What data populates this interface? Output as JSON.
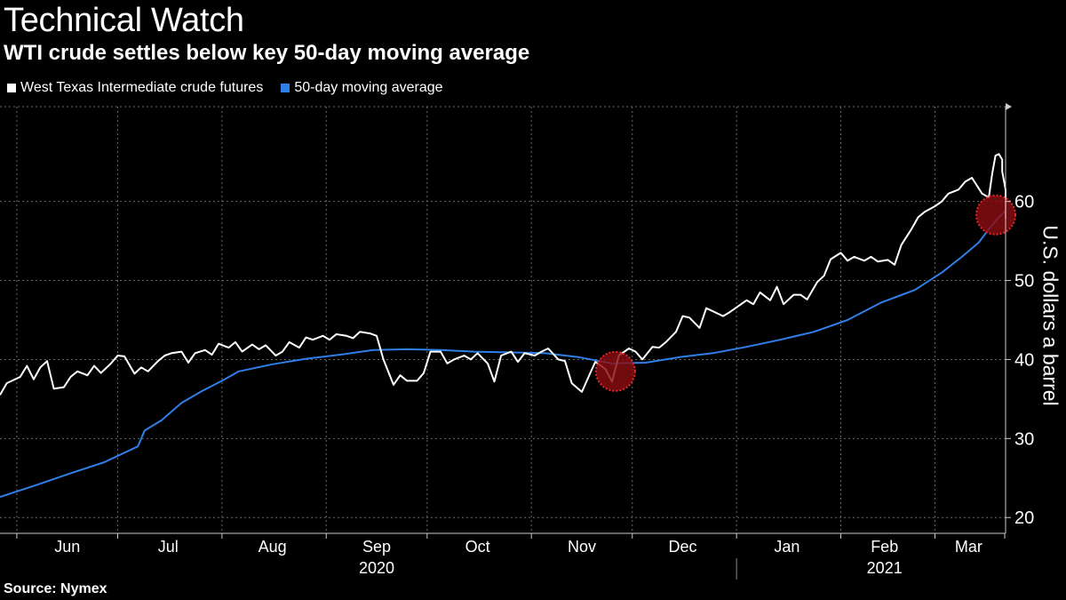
{
  "chart_data": {
    "type": "line",
    "title": "Technical Watch",
    "subtitle": "WTI crude settles below key 50-day moving average",
    "ylabel": "U.S. dollars a barrel",
    "ylim": [
      18,
      72
    ],
    "yticks": [
      20,
      30,
      40,
      50,
      60
    ],
    "xlim": [
      "2020-05-27",
      "2021-03-22"
    ],
    "x_month_ticks": [
      "2020-06-01",
      "2020-07-01",
      "2020-08-01",
      "2020-09-01",
      "2020-10-01",
      "2020-11-01",
      "2020-12-01",
      "2021-01-01",
      "2021-02-01",
      "2021-03-01",
      "2021-03-31"
    ],
    "x_month_labels": [
      {
        "label": "Jun",
        "date": "2020-06-16"
      },
      {
        "label": "Jul",
        "date": "2020-07-16"
      },
      {
        "label": "Aug",
        "date": "2020-08-16"
      },
      {
        "label": "Sep",
        "date": "2020-09-16"
      },
      {
        "label": "Oct",
        "date": "2020-10-16"
      },
      {
        "label": "Nov",
        "date": "2020-11-16"
      },
      {
        "label": "Dec",
        "date": "2020-12-16"
      },
      {
        "label": "Jan",
        "date": "2021-01-16"
      },
      {
        "label": "Feb",
        "date": "2021-02-14"
      },
      {
        "label": "Mar",
        "date": "2021-03-11"
      }
    ],
    "x_year_labels": [
      {
        "label": "2020",
        "date": "2020-09-16"
      },
      {
        "label": "2021",
        "date": "2021-02-14"
      }
    ],
    "grid": true,
    "legend_position": "top-left",
    "series": [
      {
        "name": "West Texas Intermediate crude futures",
        "color": "#ffffff",
        "points": [
          [
            "2020-05-27",
            35.5
          ],
          [
            "2020-05-29",
            37.0
          ],
          [
            "2020-06-02",
            37.8
          ],
          [
            "2020-06-04",
            39.2
          ],
          [
            "2020-06-06",
            37.5
          ],
          [
            "2020-06-08",
            39.0
          ],
          [
            "2020-06-10",
            39.8
          ],
          [
            "2020-06-12",
            36.3
          ],
          [
            "2020-06-15",
            36.5
          ],
          [
            "2020-06-17",
            37.8
          ],
          [
            "2020-06-19",
            38.5
          ],
          [
            "2020-06-22",
            38.0
          ],
          [
            "2020-06-24",
            39.2
          ],
          [
            "2020-06-26",
            38.3
          ],
          [
            "2020-06-29",
            39.5
          ],
          [
            "2020-07-01",
            40.5
          ],
          [
            "2020-07-03",
            40.4
          ],
          [
            "2020-07-06",
            38.2
          ],
          [
            "2020-07-08",
            39.0
          ],
          [
            "2020-07-10",
            38.5
          ],
          [
            "2020-07-13",
            39.8
          ],
          [
            "2020-07-15",
            40.5
          ],
          [
            "2020-07-17",
            40.8
          ],
          [
            "2020-07-20",
            41.0
          ],
          [
            "2020-07-22",
            39.6
          ],
          [
            "2020-07-24",
            40.8
          ],
          [
            "2020-07-27",
            41.2
          ],
          [
            "2020-07-29",
            40.6
          ],
          [
            "2020-07-31",
            42.0
          ],
          [
            "2020-08-03",
            41.5
          ],
          [
            "2020-08-05",
            42.2
          ],
          [
            "2020-08-07",
            41.0
          ],
          [
            "2020-08-10",
            41.9
          ],
          [
            "2020-08-12",
            41.3
          ],
          [
            "2020-08-14",
            41.8
          ],
          [
            "2020-08-17",
            40.5
          ],
          [
            "2020-08-19",
            41.0
          ],
          [
            "2020-08-21",
            42.2
          ],
          [
            "2020-08-24",
            41.5
          ],
          [
            "2020-08-26",
            42.8
          ],
          [
            "2020-08-28",
            42.5
          ],
          [
            "2020-08-31",
            43.0
          ],
          [
            "2020-09-02",
            42.5
          ],
          [
            "2020-09-04",
            43.2
          ],
          [
            "2020-09-07",
            43.0
          ],
          [
            "2020-09-09",
            42.7
          ],
          [
            "2020-09-11",
            43.5
          ],
          [
            "2020-09-14",
            43.3
          ],
          [
            "2020-09-16",
            43.0
          ],
          [
            "2020-09-18",
            40.0
          ],
          [
            "2020-09-21",
            36.8
          ],
          [
            "2020-09-23",
            38.0
          ],
          [
            "2020-09-25",
            37.3
          ],
          [
            "2020-09-28",
            37.3
          ],
          [
            "2020-09-30",
            38.3
          ],
          [
            "2020-10-02",
            41.0
          ],
          [
            "2020-10-05",
            41.0
          ],
          [
            "2020-10-07",
            39.5
          ],
          [
            "2020-10-09",
            40.0
          ],
          [
            "2020-10-12",
            40.5
          ],
          [
            "2020-10-14",
            40.0
          ],
          [
            "2020-10-16",
            40.8
          ],
          [
            "2020-10-19",
            39.5
          ],
          [
            "2020-10-21",
            37.2
          ],
          [
            "2020-10-23",
            40.5
          ],
          [
            "2020-10-26",
            41.0
          ],
          [
            "2020-10-28",
            39.7
          ],
          [
            "2020-10-30",
            40.8
          ],
          [
            "2020-11-02",
            40.5
          ],
          [
            "2020-11-04",
            41.0
          ],
          [
            "2020-11-06",
            41.4
          ],
          [
            "2020-11-09",
            40.0
          ],
          [
            "2020-11-11",
            39.8
          ],
          [
            "2020-11-13",
            37.0
          ],
          [
            "2020-11-16",
            35.9
          ],
          [
            "2020-11-18",
            37.8
          ],
          [
            "2020-11-20",
            39.7
          ],
          [
            "2020-11-23",
            38.8
          ],
          [
            "2020-11-25",
            37.2
          ],
          [
            "2020-11-27",
            40.5
          ],
          [
            "2020-11-30",
            41.4
          ],
          [
            "2020-12-02",
            41.0
          ],
          [
            "2020-12-04",
            40.0
          ],
          [
            "2020-12-07",
            41.6
          ],
          [
            "2020-12-09",
            41.5
          ],
          [
            "2020-12-11",
            42.2
          ],
          [
            "2020-12-14",
            43.5
          ],
          [
            "2020-12-16",
            45.5
          ],
          [
            "2020-12-18",
            45.3
          ],
          [
            "2020-12-21",
            44.0
          ],
          [
            "2020-12-23",
            46.5
          ],
          [
            "2020-12-28",
            45.5
          ],
          [
            "2020-12-30",
            46.0
          ],
          [
            "2021-01-04",
            47.5
          ],
          [
            "2021-01-06",
            47.0
          ],
          [
            "2021-01-08",
            48.5
          ],
          [
            "2021-01-11",
            47.5
          ],
          [
            "2021-01-13",
            49.2
          ],
          [
            "2021-01-15",
            47.0
          ],
          [
            "2021-01-18",
            48.2
          ],
          [
            "2021-01-20",
            48.2
          ],
          [
            "2021-01-22",
            47.6
          ],
          [
            "2021-01-25",
            49.8
          ],
          [
            "2021-01-27",
            50.6
          ],
          [
            "2021-01-29",
            52.7
          ],
          [
            "2021-02-01",
            53.5
          ],
          [
            "2021-02-03",
            52.5
          ],
          [
            "2021-02-05",
            53.0
          ],
          [
            "2021-02-08",
            52.5
          ],
          [
            "2021-02-10",
            53.0
          ],
          [
            "2021-02-12",
            52.4
          ],
          [
            "2021-02-15",
            52.6
          ],
          [
            "2021-02-17",
            52.0
          ],
          [
            "2021-02-19",
            54.5
          ],
          [
            "2021-02-22",
            56.5
          ],
          [
            "2021-02-24",
            58.0
          ],
          [
            "2021-02-26",
            58.7
          ],
          [
            "2021-03-01",
            59.4
          ],
          [
            "2021-03-03",
            60.0
          ],
          [
            "2021-03-05",
            61.0
          ],
          [
            "2021-03-08",
            61.5
          ],
          [
            "2021-03-10",
            62.5
          ],
          [
            "2021-03-12",
            63.0
          ],
          [
            "2021-03-15",
            61.0
          ],
          [
            "2021-03-17",
            60.5
          ],
          [
            "2021-03-18",
            63.5
          ],
          [
            "2021-03-19",
            65.8
          ],
          [
            "2021-03-20",
            66.0
          ],
          [
            "2021-03-21",
            65.3
          ],
          [
            "2021-03-21",
            63.8
          ],
          [
            "2021-03-22",
            61.5
          ],
          [
            "2021-03-22",
            59.9
          ],
          [
            "2021-03-22",
            57.8
          ]
        ]
      },
      {
        "name": "50-day moving average",
        "color": "#2f7fe8",
        "points": [
          [
            "2020-05-27",
            22.6
          ],
          [
            "2020-06-06",
            24.0
          ],
          [
            "2020-06-17",
            25.6
          ],
          [
            "2020-06-27",
            27.0
          ],
          [
            "2020-07-07",
            29.0
          ],
          [
            "2020-07-09",
            31.0
          ],
          [
            "2020-07-14",
            32.3
          ],
          [
            "2020-07-20",
            34.5
          ],
          [
            "2020-07-26",
            36.0
          ],
          [
            "2020-08-01",
            37.3
          ],
          [
            "2020-08-06",
            38.5
          ],
          [
            "2020-08-16",
            39.4
          ],
          [
            "2020-08-26",
            40.1
          ],
          [
            "2020-09-05",
            40.6
          ],
          [
            "2020-09-15",
            41.2
          ],
          [
            "2020-09-25",
            41.3
          ],
          [
            "2020-10-05",
            41.2
          ],
          [
            "2020-10-15",
            41.0
          ],
          [
            "2020-10-25",
            40.9
          ],
          [
            "2020-11-05",
            40.8
          ],
          [
            "2020-11-15",
            40.3
          ],
          [
            "2020-11-25",
            39.5
          ],
          [
            "2020-12-05",
            39.6
          ],
          [
            "2020-12-15",
            40.3
          ],
          [
            "2020-12-25",
            40.8
          ],
          [
            "2021-01-04",
            41.6
          ],
          [
            "2021-01-14",
            42.5
          ],
          [
            "2021-01-24",
            43.5
          ],
          [
            "2021-02-03",
            45.0
          ],
          [
            "2021-02-13",
            47.2
          ],
          [
            "2021-02-23",
            48.8
          ],
          [
            "2021-03-03",
            51.0
          ],
          [
            "2021-03-09",
            53.0
          ],
          [
            "2021-03-14",
            54.8
          ],
          [
            "2021-03-17",
            56.5
          ],
          [
            "2021-03-20",
            58.0
          ],
          [
            "2021-03-22",
            58.8
          ]
        ]
      }
    ],
    "highlight_markers": [
      {
        "date": "2020-11-26",
        "value": 38.5
      },
      {
        "date": "2021-03-22",
        "value": 58.3
      }
    ]
  },
  "source": "Source: Nymex",
  "colors": {
    "background": "#000000",
    "marker_fill": "#8b0d10",
    "marker_stroke": "#e0282c"
  }
}
